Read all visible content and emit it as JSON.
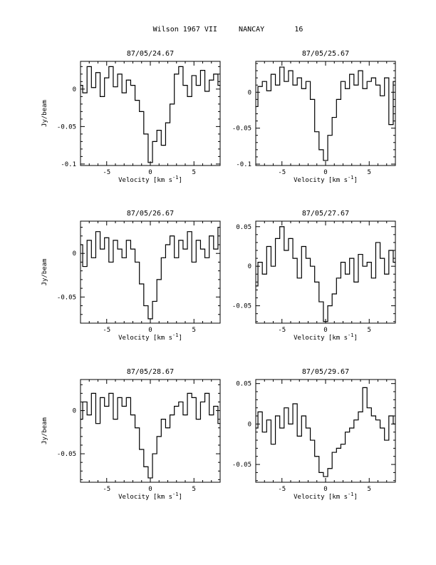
{
  "page": {
    "title_object": "Wilson 1967 VII",
    "title_site": "NANCAY",
    "title_number": "16"
  },
  "chart_data": [
    {
      "type": "line",
      "title": "87/05/24.67",
      "xlabel": "Velocity [km s^-1]",
      "ylabel": "Jy/beam",
      "xlim": [
        -8,
        8
      ],
      "ylim": [
        -0.102,
        0.037
      ],
      "xticks": [
        -5,
        0,
        5
      ],
      "yticks": [
        0,
        -0.05,
        -0.1
      ],
      "ytick_labels": [
        "0",
        "-0.05",
        "-0.1"
      ],
      "series": [
        {
          "x": [
            -8,
            -7.5,
            -7,
            -6.5,
            -6,
            -5.5,
            -5,
            -4.5,
            -4,
            -3.5,
            -3,
            -2.5,
            -2,
            -1.5,
            -1,
            -0.5,
            0,
            0.5,
            1,
            1.5,
            2,
            2.5,
            3,
            3.5,
            4,
            4.5,
            5,
            5.5,
            6,
            6.5,
            7,
            7.5,
            8
          ],
          "y": [
            0.005,
            -0.005,
            0.03,
            0.002,
            0.022,
            -0.01,
            0.015,
            0.03,
            0.003,
            0.02,
            -0.005,
            0.012,
            0.005,
            -0.015,
            -0.03,
            -0.06,
            -0.098,
            -0.07,
            -0.055,
            -0.075,
            -0.045,
            -0.02,
            0.02,
            0.03,
            0.005,
            -0.01,
            0.018,
            0.005,
            0.025,
            -0.003,
            0.012,
            0.02,
            0.005
          ]
        }
      ]
    },
    {
      "type": "line",
      "title": "87/05/25.67",
      "xlabel": "Velocity [km s^-1]",
      "ylabel": "",
      "xlim": [
        -8,
        8
      ],
      "ylim": [
        -0.102,
        0.043
      ],
      "xticks": [
        -5,
        0,
        5
      ],
      "yticks": [
        0,
        -0.05,
        -0.1
      ],
      "ytick_labels": [
        "0",
        "-0.05",
        "-0.1"
      ],
      "series": [
        {
          "x": [
            -8,
            -7.5,
            -7,
            -6.5,
            -6,
            -5.5,
            -5,
            -4.5,
            -4,
            -3.5,
            -3,
            -2.5,
            -2,
            -1.5,
            -1,
            -0.5,
            0,
            0.5,
            1,
            1.5,
            2,
            2.5,
            3,
            3.5,
            4,
            4.5,
            5,
            5.5,
            6,
            6.5,
            7,
            7.5,
            8
          ],
          "y": [
            -0.02,
            0.008,
            0.015,
            0.002,
            0.025,
            0.01,
            0.035,
            0.015,
            0.03,
            0.01,
            0.02,
            0.005,
            0.015,
            -0.01,
            -0.055,
            -0.08,
            -0.095,
            -0.06,
            -0.035,
            -0.01,
            0.015,
            0.005,
            0.025,
            0.01,
            0.03,
            0.005,
            0.015,
            0.02,
            0.01,
            -0.005,
            0.02,
            -0.045,
            0.015
          ]
        }
      ]
    },
    {
      "type": "line",
      "title": "87/05/26.67",
      "xlabel": "Velocity [km s^-1]",
      "ylabel": "Jy/beam",
      "xlim": [
        -8,
        8
      ],
      "ylim": [
        -0.08,
        0.037
      ],
      "xticks": [
        -5,
        0,
        5
      ],
      "yticks": [
        0,
        -0.05
      ],
      "ytick_labels": [
        "0",
        "-0.05"
      ],
      "series": [
        {
          "x": [
            -8,
            -7.5,
            -7,
            -6.5,
            -6,
            -5.5,
            -5,
            -4.5,
            -4,
            -3.5,
            -3,
            -2.5,
            -2,
            -1.5,
            -1,
            -0.5,
            0,
            0.5,
            1,
            1.5,
            2,
            2.5,
            3,
            3.5,
            4,
            4.5,
            5,
            5.5,
            6,
            6.5,
            7,
            7.5,
            8
          ],
          "y": [
            0.01,
            -0.015,
            0.015,
            -0.005,
            0.025,
            0.005,
            0.018,
            -0.01,
            0.015,
            0.005,
            -0.005,
            0.015,
            0.005,
            -0.01,
            -0.035,
            -0.06,
            -0.075,
            -0.055,
            -0.03,
            -0.005,
            0.01,
            0.02,
            -0.005,
            0.015,
            0.005,
            0.025,
            -0.01,
            0.015,
            0.005,
            -0.005,
            0.02,
            0.005,
            0.03
          ]
        }
      ]
    },
    {
      "type": "line",
      "title": "87/05/27.67",
      "xlabel": "Velocity [km s^-1]",
      "ylabel": "",
      "xlim": [
        -8,
        8
      ],
      "ylim": [
        -0.072,
        0.057
      ],
      "xticks": [
        -5,
        0,
        5
      ],
      "yticks": [
        0.05,
        0,
        -0.05
      ],
      "ytick_labels": [
        "0.05",
        "0",
        "-0.05"
      ],
      "series": [
        {
          "x": [
            -8,
            -7.5,
            -7,
            -6.5,
            -6,
            -5.5,
            -5,
            -4.5,
            -4,
            -3.5,
            -3,
            -2.5,
            -2,
            -1.5,
            -1,
            -0.5,
            0,
            0.5,
            1,
            1.5,
            2,
            2.5,
            3,
            3.5,
            4,
            4.5,
            5,
            5.5,
            6,
            6.5,
            7,
            7.5,
            8
          ],
          "y": [
            -0.025,
            0.005,
            -0.01,
            0.025,
            0.0,
            0.035,
            0.05,
            0.02,
            0.035,
            0.01,
            -0.015,
            0.025,
            0.01,
            0.0,
            -0.02,
            -0.045,
            -0.07,
            -0.05,
            -0.035,
            -0.015,
            0.005,
            -0.01,
            0.01,
            -0.02,
            0.015,
            0.0,
            0.005,
            -0.015,
            0.03,
            0.01,
            -0.01,
            0.02,
            0.005
          ]
        }
      ]
    },
    {
      "type": "line",
      "title": "87/05/28.67",
      "xlabel": "Velocity [km s^-1]",
      "ylabel": "Jy/beam",
      "xlim": [
        -8,
        8
      ],
      "ylim": [
        -0.083,
        0.036
      ],
      "xticks": [
        -5,
        0,
        5
      ],
      "yticks": [
        0,
        -0.05
      ],
      "ytick_labels": [
        "0",
        "-0.05"
      ],
      "series": [
        {
          "x": [
            -8,
            -7.5,
            -7,
            -6.5,
            -6,
            -5.5,
            -5,
            -4.5,
            -4,
            -3.5,
            -3,
            -2.5,
            -2,
            -1.5,
            -1,
            -0.5,
            0,
            0.5,
            1,
            1.5,
            2,
            2.5,
            3,
            3.5,
            4,
            4.5,
            5,
            5.5,
            6,
            6.5,
            7,
            7.5,
            8
          ],
          "y": [
            -0.01,
            0.01,
            -0.005,
            0.02,
            -0.015,
            0.015,
            0.005,
            0.02,
            -0.01,
            0.015,
            0.005,
            0.015,
            -0.005,
            -0.02,
            -0.045,
            -0.065,
            -0.078,
            -0.05,
            -0.03,
            -0.01,
            -0.02,
            -0.005,
            0.005,
            0.01,
            -0.005,
            0.02,
            0.015,
            -0.01,
            0.01,
            0.02,
            -0.005,
            0.005,
            -0.015
          ]
        }
      ]
    },
    {
      "type": "line",
      "title": "87/05/29.67",
      "xlabel": "Velocity [km s^-1]",
      "ylabel": "",
      "xlim": [
        -8,
        8
      ],
      "ylim": [
        -0.072,
        0.055
      ],
      "xticks": [
        -5,
        0,
        5
      ],
      "yticks": [
        0.05,
        0,
        -0.05
      ],
      "ytick_labels": [
        "0.05",
        "0",
        "-0.05"
      ],
      "series": [
        {
          "x": [
            -8,
            -7.5,
            -7,
            -6.5,
            -6,
            -5.5,
            -5,
            -4.5,
            -4,
            -3.5,
            -3,
            -2.5,
            -2,
            -1.5,
            -1,
            -0.5,
            0,
            0.5,
            1,
            1.5,
            2,
            2.5,
            3,
            3.5,
            4,
            4.5,
            5,
            5.5,
            6,
            6.5,
            7,
            7.5,
            8
          ],
          "y": [
            -0.005,
            0.015,
            -0.01,
            0.005,
            -0.025,
            0.01,
            -0.005,
            0.02,
            0.0,
            0.025,
            -0.015,
            0.01,
            -0.005,
            -0.02,
            -0.04,
            -0.06,
            -0.065,
            -0.055,
            -0.035,
            -0.03,
            -0.025,
            -0.01,
            -0.005,
            0.005,
            0.015,
            0.045,
            0.02,
            0.01,
            0.005,
            -0.005,
            -0.02,
            0.01,
            0.0
          ]
        }
      ]
    }
  ]
}
